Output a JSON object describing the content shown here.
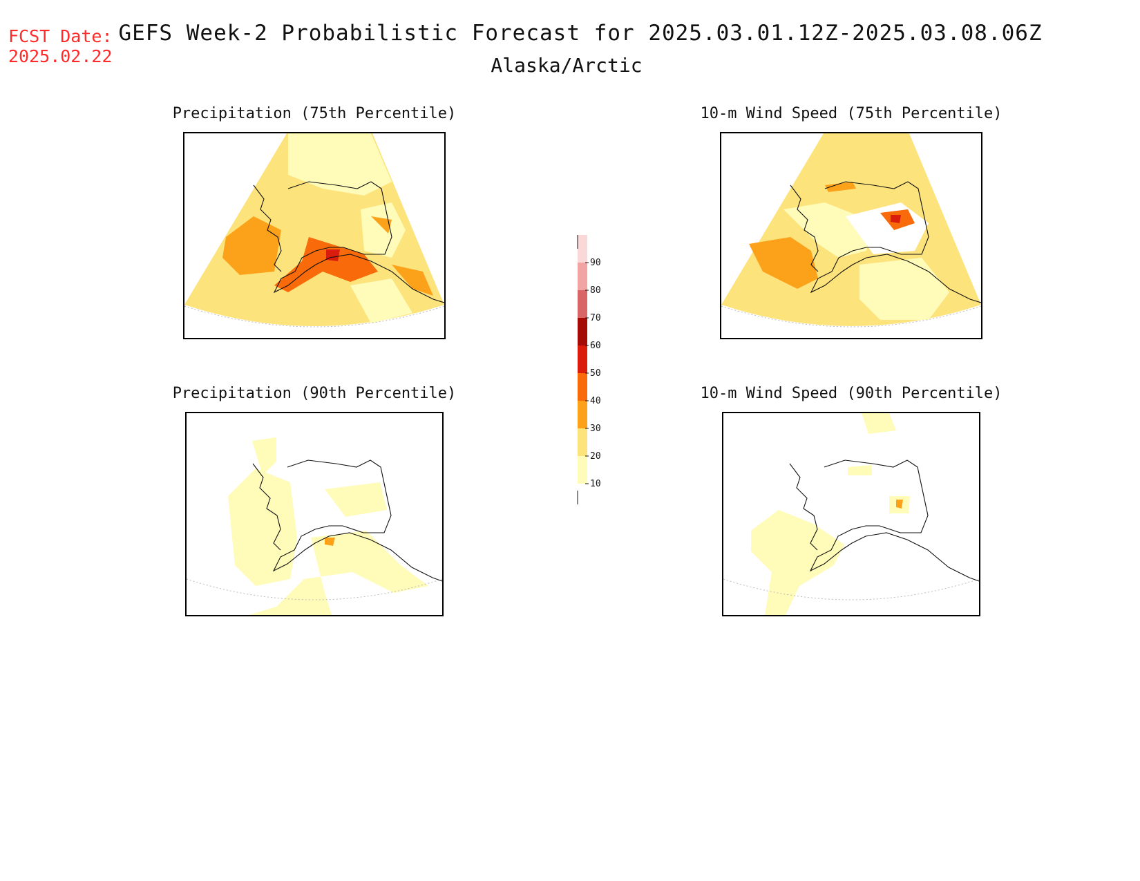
{
  "header": {
    "fcst_label": "FCST Date:",
    "fcst_date": "2025.02.22",
    "title": "GEFS Week-2 Probabilistic Forecast for 2025.03.01.12Z-2025.03.08.06Z",
    "subtitle": "Alaska/Arctic"
  },
  "panels": [
    {
      "id": "p75",
      "title": "Precipitation (75th Percentile)"
    },
    {
      "id": "w75",
      "title": "10-m Wind Speed (75th Percentile)"
    },
    {
      "id": "p90",
      "title": "Precipitation (90th Percentile)"
    },
    {
      "id": "w90",
      "title": "10-m Wind Speed (90th Percentile)"
    }
  ],
  "colorbar": {
    "levels": [
      "10",
      "20",
      "30",
      "40",
      "50",
      "60",
      "70",
      "80",
      "90"
    ],
    "colors": [
      "#fffbb8",
      "#fde37c",
      "#fba21a",
      "#f86a0a",
      "#d91c0b",
      "#a40b06",
      "#d96666",
      "#f0a4a4",
      "#fbd8d8"
    ]
  }
}
